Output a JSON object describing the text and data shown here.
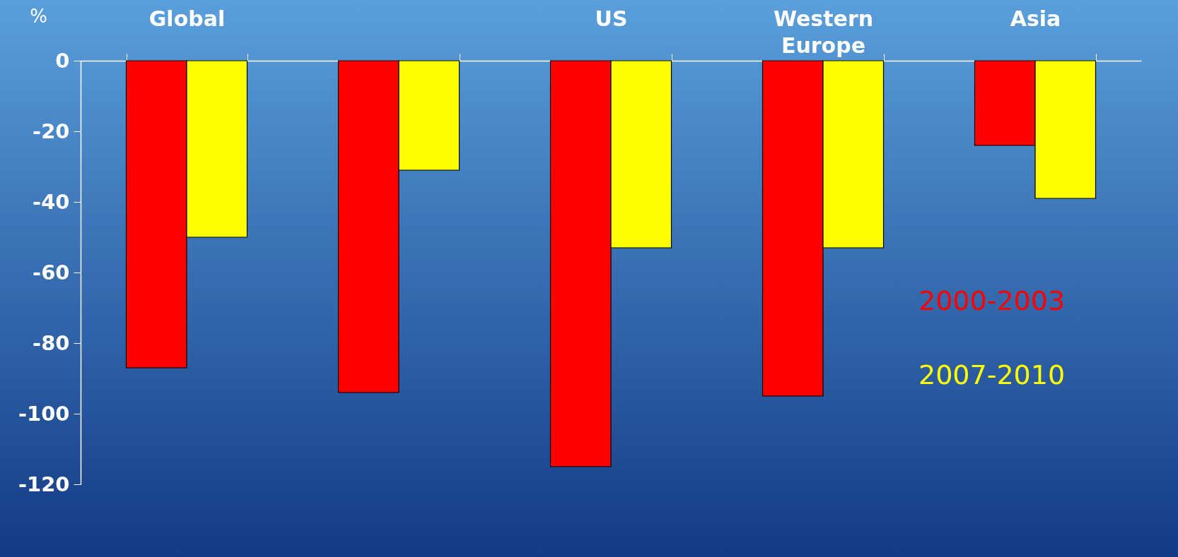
{
  "chart_data": {
    "type": "bar",
    "ylabel": "%",
    "categories": [
      "Global",
      null,
      "US",
      "Western Europe",
      "Asia"
    ],
    "series": [
      {
        "name": "2000-2003",
        "color": "#ff0000",
        "values": [
          -87,
          -94,
          -115,
          -95,
          -24
        ]
      },
      {
        "name": "2007-2010",
        "color": "#ffff00",
        "values": [
          -50,
          -31,
          -53,
          -53,
          -39
        ]
      }
    ],
    "ylim": [
      -120,
      0
    ],
    "yticks": [
      -120,
      -100,
      -80,
      -60,
      -40,
      -20,
      0
    ],
    "grid": false,
    "legend": "bottom right"
  }
}
